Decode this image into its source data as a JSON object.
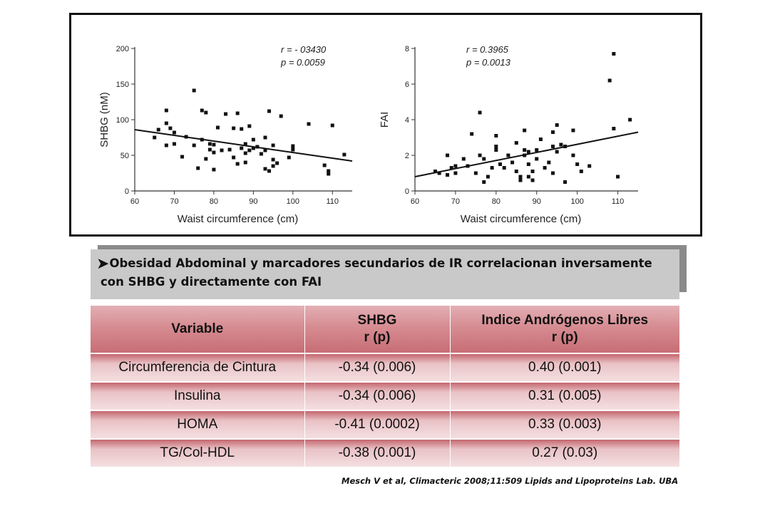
{
  "chart_data": [
    {
      "type": "scatter",
      "ylabel": "SHBG (nM)",
      "xlabel": "Waist circumference (cm)",
      "xlim": [
        60,
        115
      ],
      "ylim": [
        0,
        200
      ],
      "xticks": [
        60,
        70,
        80,
        90,
        100,
        110
      ],
      "yticks": [
        0,
        50,
        100,
        150,
        200
      ],
      "annotation": {
        "r_label": "r = - 03430",
        "p_label": "p = 0.0059"
      },
      "trendline": [
        [
          60,
          86
        ],
        [
          115,
          42
        ]
      ],
      "points": [
        [
          65,
          75
        ],
        [
          66,
          86
        ],
        [
          68,
          113
        ],
        [
          68,
          64
        ],
        [
          68,
          95
        ],
        [
          69,
          88
        ],
        [
          70,
          82
        ],
        [
          70,
          66
        ],
        [
          72,
          48
        ],
        [
          73,
          76
        ],
        [
          75,
          141
        ],
        [
          75,
          64
        ],
        [
          76,
          32
        ],
        [
          77,
          113
        ],
        [
          77,
          72
        ],
        [
          78,
          110
        ],
        [
          78,
          45
        ],
        [
          79,
          66
        ],
        [
          79,
          58
        ],
        [
          80,
          65
        ],
        [
          80,
          54
        ],
        [
          80,
          30
        ],
        [
          81,
          89
        ],
        [
          82,
          57
        ],
        [
          83,
          108
        ],
        [
          84,
          58
        ],
        [
          85,
          88
        ],
        [
          85,
          47
        ],
        [
          86,
          109
        ],
        [
          86,
          38
        ],
        [
          87,
          87
        ],
        [
          87,
          60
        ],
        [
          88,
          53
        ],
        [
          88,
          66
        ],
        [
          88,
          40
        ],
        [
          89,
          91
        ],
        [
          89,
          57
        ],
        [
          90,
          60
        ],
        [
          90,
          72
        ],
        [
          91,
          62
        ],
        [
          92,
          52
        ],
        [
          93,
          57
        ],
        [
          93,
          75
        ],
        [
          93,
          31
        ],
        [
          94,
          112
        ],
        [
          94,
          28
        ],
        [
          95,
          44
        ],
        [
          95,
          64
        ],
        [
          95,
          35
        ],
        [
          96,
          39
        ],
        [
          97,
          105
        ],
        [
          99,
          47
        ],
        [
          100,
          63
        ],
        [
          100,
          58
        ],
        [
          104,
          94
        ],
        [
          108,
          36
        ],
        [
          109,
          28
        ],
        [
          109,
          24
        ],
        [
          110,
          92
        ],
        [
          113,
          51
        ]
      ]
    },
    {
      "type": "scatter",
      "ylabel": "FAI",
      "xlabel": "Waist circumference (cm)",
      "xlim": [
        60,
        115
      ],
      "ylim": [
        0,
        8
      ],
      "xticks": [
        60,
        70,
        80,
        90,
        100,
        110
      ],
      "yticks": [
        0,
        2,
        4,
        6,
        8
      ],
      "annotation": {
        "r_label": "r = 0.3965",
        "p_label": "p = 0.0013"
      },
      "trendline": [
        [
          60,
          0.8
        ],
        [
          115,
          3.3
        ]
      ],
      "points": [
        [
          65,
          1.1
        ],
        [
          66,
          1.0
        ],
        [
          68,
          0.9
        ],
        [
          68,
          2.0
        ],
        [
          69,
          1.3
        ],
        [
          70,
          1.0
        ],
        [
          70,
          1.4
        ],
        [
          72,
          1.8
        ],
        [
          73,
          1.4
        ],
        [
          74,
          3.2
        ],
        [
          75,
          1.0
        ],
        [
          76,
          4.4
        ],
        [
          76,
          2.0
        ],
        [
          77,
          1.8
        ],
        [
          77,
          0.5
        ],
        [
          78,
          0.8
        ],
        [
          79,
          1.3
        ],
        [
          80,
          3.1
        ],
        [
          80,
          2.3
        ],
        [
          80,
          2.5
        ],
        [
          81,
          1.5
        ],
        [
          82,
          1.3
        ],
        [
          83,
          2.0
        ],
        [
          84,
          1.6
        ],
        [
          85,
          2.7
        ],
        [
          85,
          1.1
        ],
        [
          86,
          0.8
        ],
        [
          86,
          0.6
        ],
        [
          87,
          3.4
        ],
        [
          87,
          2.3
        ],
        [
          87,
          2.0
        ],
        [
          88,
          2.2
        ],
        [
          88,
          1.5
        ],
        [
          88,
          0.8
        ],
        [
          89,
          1.1
        ],
        [
          89,
          0.6
        ],
        [
          90,
          2.3
        ],
        [
          90,
          1.8
        ],
        [
          91,
          2.9
        ],
        [
          92,
          1.3
        ],
        [
          93,
          1.6
        ],
        [
          94,
          3.3
        ],
        [
          94,
          2.5
        ],
        [
          94,
          1.0
        ],
        [
          95,
          2.2
        ],
        [
          95,
          3.7
        ],
        [
          96,
          2.6
        ],
        [
          97,
          2.5
        ],
        [
          97,
          0.5
        ],
        [
          99,
          3.4
        ],
        [
          99,
          2.0
        ],
        [
          100,
          1.5
        ],
        [
          101,
          1.1
        ],
        [
          103,
          1.4
        ],
        [
          108,
          6.2
        ],
        [
          109,
          7.7
        ],
        [
          109,
          3.5
        ],
        [
          110,
          0.8
        ],
        [
          113,
          4.0
        ]
      ]
    }
  ],
  "banner": {
    "bullet": "➤",
    "text": "Obesidad Abdominal y marcadores secundarios de IR correlacionan inversamente con SHBG y directamente con FAI"
  },
  "table": {
    "headers": [
      {
        "line1": "Variable",
        "line2": ""
      },
      {
        "line1": "SHBG",
        "line2": "r (p)"
      },
      {
        "line1": "Indice Andrógenos Libres",
        "line2": "r (p)"
      }
    ],
    "rows": [
      [
        "Circumferencia de Cintura",
        "-0.34 (0.006)",
        "0.40 (0.001)"
      ],
      [
        "Insulina",
        "-0.34 (0.006)",
        "0.31 (0.005)"
      ],
      [
        "HOMA",
        "-0.41 (0.0002)",
        "0.33 (0.003)"
      ],
      [
        "TG/Col-HDL",
        "-0.38 (0.001)",
        "0.27 (0.03)"
      ]
    ]
  },
  "citation": "Mesch V et al, Climacteric 2008;11:509 Lipids and Lipoproteins Lab. UBA",
  "colors": {
    "header_pink": "#d68c92",
    "row_pink": "#e9c2c5",
    "banner_gray": "#c9c9c9",
    "banner_shadow": "#8a8a8a"
  }
}
